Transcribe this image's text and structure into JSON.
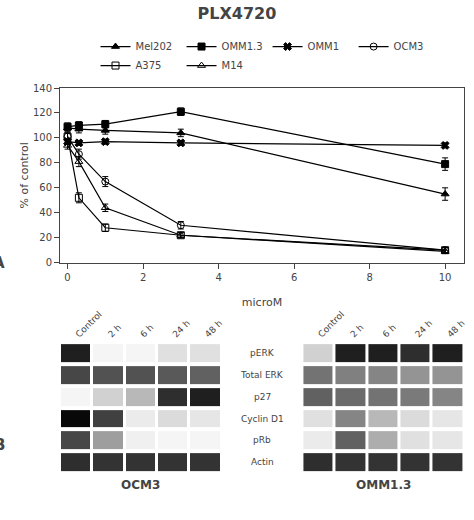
{
  "chart_data": [
    {
      "type": "line",
      "title": "PLX4720",
      "xlabel": "microM",
      "ylabel": "% of control",
      "xlim": [
        -0.2,
        10.5
      ],
      "ylim": [
        0,
        140
      ],
      "xticks": [
        0,
        2,
        4,
        6,
        8,
        10
      ],
      "yticks": [
        0,
        20,
        40,
        60,
        80,
        100,
        120,
        140
      ],
      "grid": false,
      "legend": "top",
      "annotations": [
        "A"
      ],
      "series": [
        {
          "name": "Mel202",
          "color": "#000000",
          "marker": "triangle-up",
          "x": [
            0,
            0.3,
            1,
            3,
            10
          ],
          "values": [
            108,
            107,
            106,
            104,
            55
          ],
          "yerr": [
            3,
            3,
            3,
            3,
            5
          ]
        },
        {
          "name": "OMM1.3",
          "color": "#000000",
          "marker": "square",
          "x": [
            0,
            0.3,
            1,
            3,
            10
          ],
          "values": [
            109,
            110,
            111,
            121,
            79
          ],
          "yerr": [
            3,
            3,
            3,
            3,
            5
          ]
        },
        {
          "name": "OMM1",
          "color": "#000000",
          "marker": "x",
          "x": [
            0,
            0.3,
            1,
            3,
            10
          ],
          "values": [
            97,
            96,
            97,
            96,
            94
          ],
          "yerr": [
            2,
            2,
            2,
            2,
            2
          ]
        },
        {
          "name": "OCM3",
          "color": "#000000",
          "marker": "circle-open",
          "x": [
            0,
            0.3,
            1,
            3,
            10
          ],
          "values": [
            101,
            87,
            65,
            30,
            10
          ],
          "yerr": [
            3,
            4,
            4,
            3,
            2
          ]
        },
        {
          "name": "A375",
          "color": "#000000",
          "marker": "square-open",
          "x": [
            0,
            0.3,
            1,
            3,
            10
          ],
          "values": [
            101,
            52,
            28,
            22,
            10
          ],
          "yerr": [
            3,
            4,
            3,
            2,
            2
          ]
        },
        {
          "name": "M14",
          "color": "#000000",
          "marker": "triangle-up-open",
          "x": [
            0,
            0.3,
            1,
            3,
            10
          ],
          "values": [
            94,
            81,
            44,
            22,
            9
          ],
          "yerr": [
            3,
            4,
            3,
            2,
            1
          ]
        }
      ]
    },
    {
      "type": "heatmap",
      "annotations": [
        "B"
      ],
      "categories": [
        "Control",
        "2 h",
        "6 h",
        "24 h",
        "48 h"
      ],
      "rows": [
        "pERK",
        "Total ERK",
        "p27",
        "Cyclin D1",
        "pRb",
        "Actin"
      ],
      "zlim": [
        0,
        1
      ],
      "panels": [
        {
          "name": "OCM3",
          "cells": [
            [
              0.88,
              0.04,
              0.04,
              0.12,
              0.12
            ],
            [
              0.72,
              0.68,
              0.68,
              0.65,
              0.62
            ],
            [
              0.04,
              0.18,
              0.28,
              0.82,
              0.88
            ],
            [
              0.97,
              0.75,
              0.08,
              0.14,
              0.1
            ],
            [
              0.72,
              0.38,
              0.06,
              0.04,
              0.04
            ],
            [
              0.82,
              0.8,
              0.8,
              0.8,
              0.8
            ]
          ]
        },
        {
          "name": "OMM1.3",
          "cells": [
            [
              0.18,
              0.88,
              0.88,
              0.82,
              0.88
            ],
            [
              0.55,
              0.5,
              0.48,
              0.42,
              0.42
            ],
            [
              0.62,
              0.58,
              0.55,
              0.52,
              0.48
            ],
            [
              0.12,
              0.48,
              0.28,
              0.14,
              0.1
            ],
            [
              0.08,
              0.62,
              0.32,
              0.12,
              0.1
            ],
            [
              0.82,
              0.8,
              0.8,
              0.8,
              0.8
            ]
          ]
        }
      ]
    }
  ]
}
